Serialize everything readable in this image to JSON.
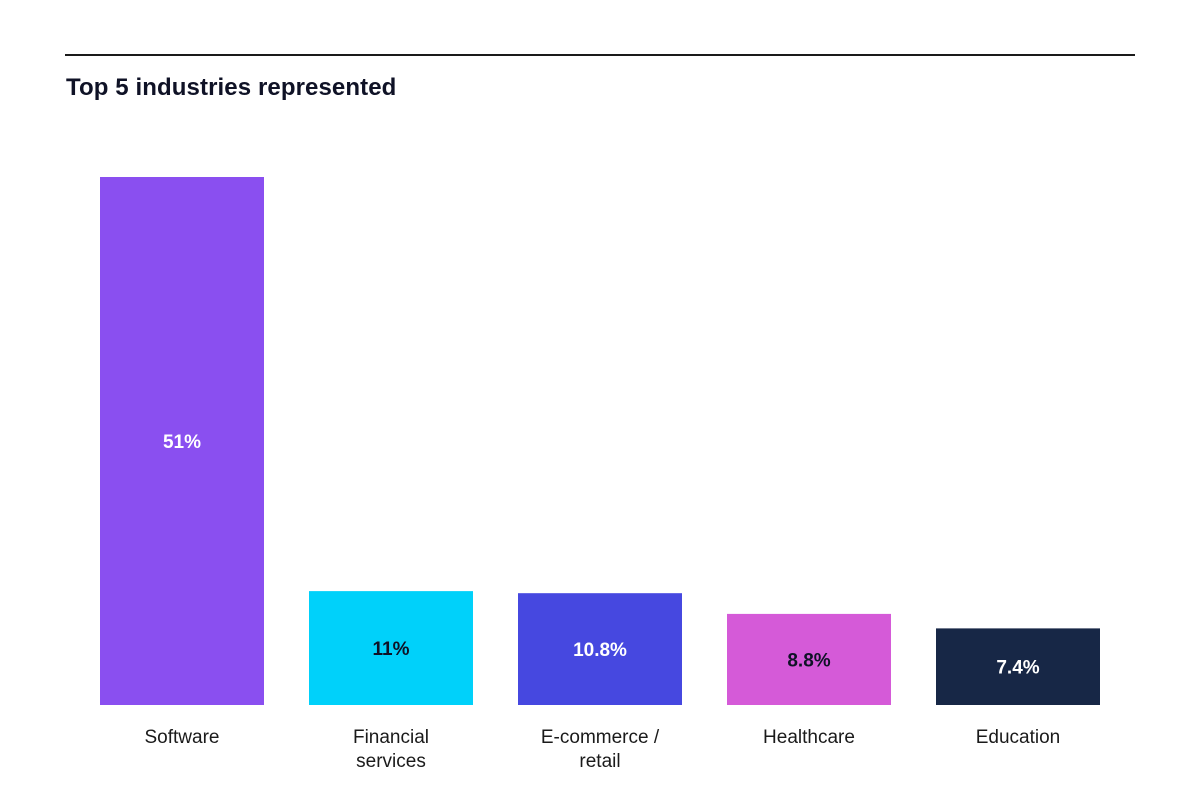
{
  "chart_data": {
    "type": "bar",
    "title": "Top 5 industries represented",
    "xlabel": "",
    "ylabel": "",
    "ylim": [
      0,
      51
    ],
    "grid": false,
    "legend": "none",
    "categories": [
      [
        "Software"
      ],
      [
        "Financial",
        "services"
      ],
      [
        "E-commerce /",
        "retail"
      ],
      [
        "Healthcare"
      ],
      [
        "Education"
      ]
    ],
    "values": [
      51,
      11,
      10.8,
      8.8,
      7.4
    ],
    "value_labels": [
      "51%",
      "11%",
      "10.8%",
      "8.8%",
      "7.4%"
    ],
    "colors": [
      "#8a4ff0",
      "#00d1fa",
      "#4648e0",
      "#d55ad8",
      "#172746"
    ],
    "label_colors": [
      "#ffffff",
      "#0f1226",
      "#ffffff",
      "#0f1226",
      "#ffffff"
    ]
  }
}
